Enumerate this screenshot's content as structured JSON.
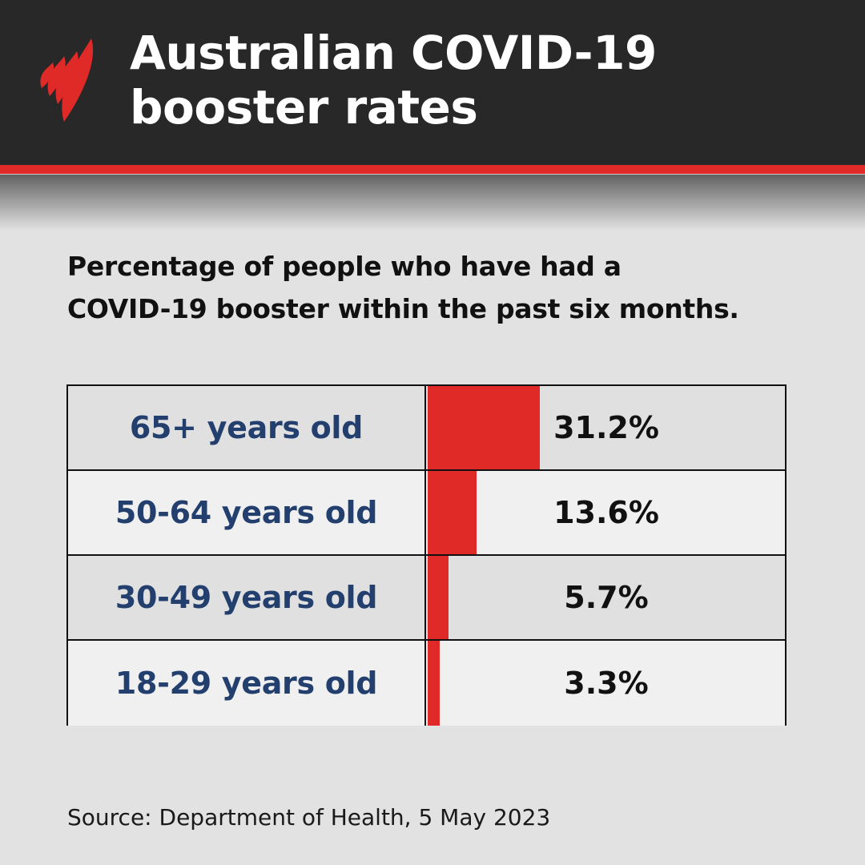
{
  "header": {
    "logo_icon": "sbs-flame-logo",
    "title_line1": "Australian COVID-19",
    "title_line2": "booster rates",
    "colors": {
      "background": "#282828",
      "accent": "#e02a27",
      "title": "#ffffff"
    }
  },
  "subtitle": {
    "line1": "Percentage of people who have had a",
    "line2": "COVID-19 booster within the past six months."
  },
  "table": {
    "rows": [
      {
        "label": "65+ years old",
        "value": "31.2%",
        "pct": 31.2
      },
      {
        "label": "50-64 years old",
        "value": "13.6%",
        "pct": 13.6
      },
      {
        "label": "30-49 years old",
        "value": "5.7%",
        "pct": 5.7
      },
      {
        "label": "18-29 years old",
        "value": "3.3%",
        "pct": 3.3
      }
    ],
    "colors": {
      "bar": "#e02a27",
      "label": "#223f6e",
      "row_dark": "#e0e0e0",
      "row_light": "#f0f0f0"
    }
  },
  "footer": {
    "source": "Source: Department of Health, 5 May 2023"
  },
  "chart_data": {
    "type": "bar",
    "orientation": "horizontal",
    "title": "Australian COVID-19 booster rates",
    "subtitle": "Percentage of people who have had a COVID-19 booster within the past six months.",
    "categories": [
      "65+ years old",
      "50-64 years old",
      "30-49 years old",
      "18-29 years old"
    ],
    "values": [
      31.2,
      13.6,
      5.7,
      3.3
    ],
    "value_labels": [
      "31.2%",
      "13.6%",
      "5.7%",
      "3.3%"
    ],
    "xlabel": "",
    "ylabel": "",
    "units": "%",
    "grid": false,
    "legend": null,
    "bar_color": "#e02a27",
    "source": "Source: Department of Health, 5 May 2023"
  }
}
